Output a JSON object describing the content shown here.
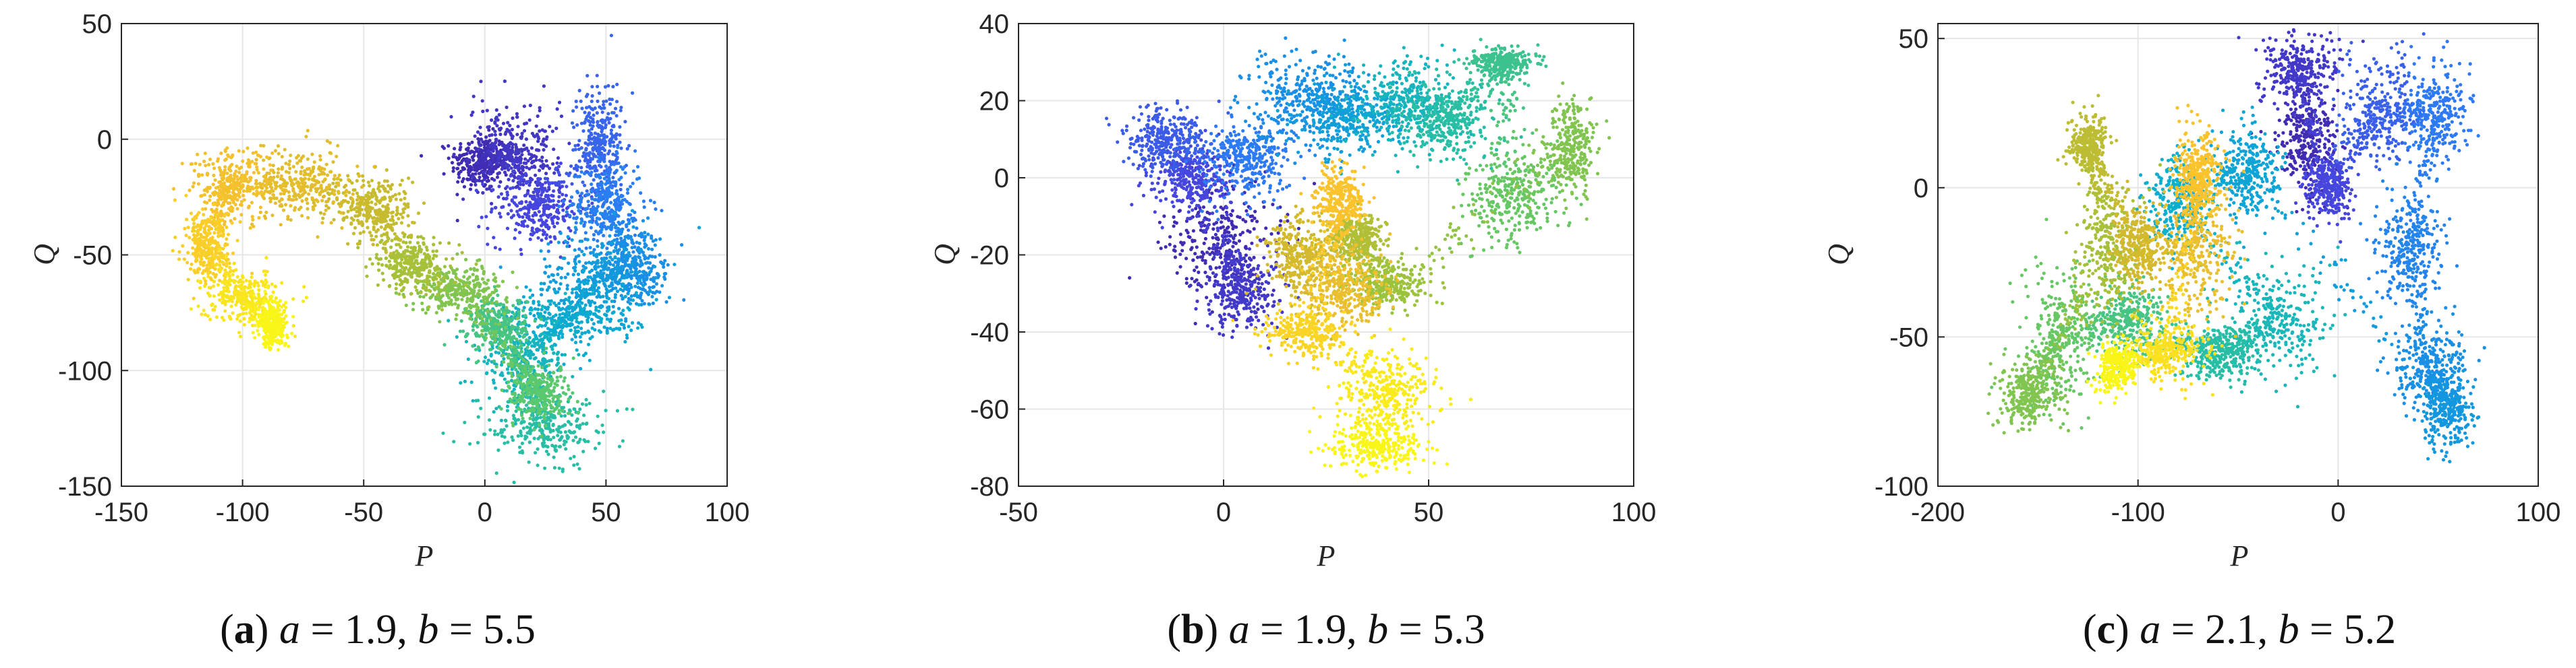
{
  "chart_data": [
    {
      "type": "scatter",
      "panel_label": "a",
      "caption_eq_a": "a",
      "caption_val_a": "= 1.9,",
      "caption_eq_b": "b",
      "caption_val_b": "= 5.5",
      "xlabel": "P",
      "ylabel": "Q",
      "xlim": [
        -150,
        100
      ],
      "ylim": [
        -150,
        50
      ],
      "xticks": [
        -150,
        -100,
        -50,
        0,
        50,
        100
      ],
      "yticks": [
        -150,
        -100,
        -50,
        0,
        50
      ],
      "xtick_labels": [
        "-150",
        "-100",
        "-50",
        "0",
        "50",
        "100"
      ],
      "ytick_labels": [
        "-150",
        "-100",
        "-50",
        "0",
        "50"
      ],
      "grid": true,
      "colormap": "parula",
      "clusters": [
        {
          "x": -2,
          "y": -10,
          "sx": 6,
          "sy": 6,
          "c": 0.02
        },
        {
          "x": 12,
          "y": -5,
          "sx": 9,
          "sy": 10,
          "c": 0.05
        },
        {
          "x": 22,
          "y": -30,
          "sx": 10,
          "sy": 8,
          "c": 0.1
        },
        {
          "x": 48,
          "y": 0,
          "sx": 5,
          "sy": 14,
          "c": 0.16
        },
        {
          "x": 50,
          "y": -30,
          "sx": 8,
          "sy": 10,
          "c": 0.22
        },
        {
          "x": 62,
          "y": -55,
          "sx": 7,
          "sy": 8,
          "c": 0.28
        },
        {
          "x": 45,
          "y": -60,
          "sx": 12,
          "sy": 10,
          "c": 0.33
        },
        {
          "x": 35,
          "y": -78,
          "sx": 14,
          "sy": 7,
          "c": 0.38
        },
        {
          "x": 15,
          "y": -95,
          "sx": 10,
          "sy": 10,
          "c": 0.44
        },
        {
          "x": 25,
          "y": -125,
          "sx": 12,
          "sy": 7,
          "c": 0.5
        },
        {
          "x": 5,
          "y": -80,
          "sx": 6,
          "sy": 6,
          "c": 0.56
        },
        {
          "x": 22,
          "y": -110,
          "sx": 6,
          "sy": 6,
          "c": 0.6
        },
        {
          "x": -10,
          "y": -65,
          "sx": 10,
          "sy": 5,
          "c": 0.66
        },
        {
          "x": -30,
          "y": -55,
          "sx": 8,
          "sy": 6,
          "c": 0.72
        },
        {
          "x": -45,
          "y": -30,
          "sx": 8,
          "sy": 8,
          "c": 0.78
        },
        {
          "x": -75,
          "y": -20,
          "sx": 10,
          "sy": 8,
          "c": 0.84
        },
        {
          "x": -105,
          "y": -20,
          "sx": 8,
          "sy": 8,
          "c": 0.88
        },
        {
          "x": -115,
          "y": -45,
          "sx": 5,
          "sy": 8,
          "c": 0.92
        },
        {
          "x": -100,
          "y": -68,
          "sx": 8,
          "sy": 6,
          "c": 0.96
        },
        {
          "x": -88,
          "y": -80,
          "sx": 3,
          "sy": 5,
          "c": 0.99
        }
      ]
    },
    {
      "type": "scatter",
      "panel_label": "b",
      "caption_eq_a": "a",
      "caption_val_a": "= 1.9,",
      "caption_eq_b": "b",
      "caption_val_b": "= 5.3",
      "xlabel": "P",
      "ylabel": "Q",
      "xlim": [
        -50,
        100
      ],
      "ylim": [
        -80,
        40
      ],
      "xticks": [
        -50,
        0,
        50,
        100
      ],
      "yticks": [
        -80,
        -60,
        -40,
        -20,
        0,
        20,
        40
      ],
      "xtick_labels": [
        "-50",
        "0",
        "50",
        "100"
      ],
      "ytick_labels": [
        "-80",
        "-60",
        "-40",
        "-20",
        "0",
        "20",
        "40"
      ],
      "grid": true,
      "colormap": "parula",
      "clusters": [
        {
          "x": 0,
          "y": -15,
          "sx": 7,
          "sy": 7,
          "c": 0.02
        },
        {
          "x": 5,
          "y": -30,
          "sx": 5,
          "sy": 5,
          "c": 0.06
        },
        {
          "x": -8,
          "y": 0,
          "sx": 5,
          "sy": 4,
          "c": 0.1
        },
        {
          "x": -15,
          "y": 10,
          "sx": 5,
          "sy": 4,
          "c": 0.14
        },
        {
          "x": 5,
          "y": 5,
          "sx": 5,
          "sy": 5,
          "c": 0.2
        },
        {
          "x": 20,
          "y": 22,
          "sx": 8,
          "sy": 6,
          "c": 0.28
        },
        {
          "x": 30,
          "y": 15,
          "sx": 6,
          "sy": 5,
          "c": 0.34
        },
        {
          "x": 45,
          "y": 20,
          "sx": 6,
          "sy": 6,
          "c": 0.44
        },
        {
          "x": 55,
          "y": 15,
          "sx": 6,
          "sy": 5,
          "c": 0.5
        },
        {
          "x": 68,
          "y": 30,
          "sx": 4,
          "sy": 2,
          "c": 0.54
        },
        {
          "x": 70,
          "y": -5,
          "sx": 6,
          "sy": 6,
          "c": 0.62
        },
        {
          "x": 85,
          "y": 8,
          "sx": 3,
          "sy": 6,
          "c": 0.66
        },
        {
          "x": 40,
          "y": -28,
          "sx": 5,
          "sy": 3,
          "c": 0.7
        },
        {
          "x": 33,
          "y": -15,
          "sx": 3,
          "sy": 3,
          "c": 0.74
        },
        {
          "x": 18,
          "y": -20,
          "sx": 4,
          "sy": 6,
          "c": 0.8
        },
        {
          "x": 30,
          "y": -30,
          "sx": 5,
          "sy": 5,
          "c": 0.86
        },
        {
          "x": 28,
          "y": -5,
          "sx": 3,
          "sy": 4,
          "c": 0.9
        },
        {
          "x": 20,
          "y": -40,
          "sx": 5,
          "sy": 3,
          "c": 0.93
        },
        {
          "x": 40,
          "y": -55,
          "sx": 6,
          "sy": 6,
          "c": 0.97
        },
        {
          "x": 38,
          "y": -70,
          "sx": 6,
          "sy": 3,
          "c": 0.99
        }
      ]
    },
    {
      "type": "scatter",
      "panel_label": "c",
      "caption_eq_a": "a",
      "caption_val_a": "= 2.1,",
      "caption_eq_b": "b",
      "caption_val_b": "= 5.2",
      "xlabel": "P",
      "ylabel": "Q",
      "xlim": [
        -200,
        100
      ],
      "ylim": [
        -100,
        55
      ],
      "xticks": [
        -200,
        -100,
        0,
        100
      ],
      "yticks": [
        -100,
        -50,
        0,
        50
      ],
      "xtick_labels": [
        "-200",
        "-100",
        "0",
        "100"
      ],
      "ytick_labels": [
        "-100",
        "-50",
        "0",
        "50"
      ],
      "grid": true,
      "colormap": "parula",
      "clusters": [
        {
          "x": -15,
          "y": 15,
          "sx": 8,
          "sy": 8,
          "c": 0.02
        },
        {
          "x": -20,
          "y": 40,
          "sx": 10,
          "sy": 6,
          "c": 0.06
        },
        {
          "x": -5,
          "y": 0,
          "sx": 6,
          "sy": 5,
          "c": 0.1
        },
        {
          "x": 20,
          "y": 25,
          "sx": 10,
          "sy": 10,
          "c": 0.15
        },
        {
          "x": 50,
          "y": 25,
          "sx": 8,
          "sy": 8,
          "c": 0.2
        },
        {
          "x": 35,
          "y": -20,
          "sx": 8,
          "sy": 10,
          "c": 0.24
        },
        {
          "x": 45,
          "y": -60,
          "sx": 10,
          "sy": 8,
          "c": 0.28
        },
        {
          "x": 55,
          "y": -75,
          "sx": 6,
          "sy": 6,
          "c": 0.31
        },
        {
          "x": -45,
          "y": 5,
          "sx": 8,
          "sy": 8,
          "c": 0.36
        },
        {
          "x": -80,
          "y": -5,
          "sx": 8,
          "sy": 8,
          "c": 0.4
        },
        {
          "x": -30,
          "y": -45,
          "sx": 12,
          "sy": 10,
          "c": 0.45
        },
        {
          "x": -60,
          "y": -55,
          "sx": 10,
          "sy": 5,
          "c": 0.5
        },
        {
          "x": -105,
          "y": -45,
          "sx": 8,
          "sy": 6,
          "c": 0.56
        },
        {
          "x": -140,
          "y": -50,
          "sx": 10,
          "sy": 12,
          "c": 0.62
        },
        {
          "x": -155,
          "y": -70,
          "sx": 8,
          "sy": 6,
          "c": 0.66
        },
        {
          "x": -115,
          "y": -20,
          "sx": 8,
          "sy": 12,
          "c": 0.72
        },
        {
          "x": -125,
          "y": 15,
          "sx": 5,
          "sy": 5,
          "c": 0.76
        },
        {
          "x": -100,
          "y": -20,
          "sx": 6,
          "sy": 6,
          "c": 0.8
        },
        {
          "x": -70,
          "y": -20,
          "sx": 10,
          "sy": 12,
          "c": 0.86
        },
        {
          "x": -70,
          "y": 5,
          "sx": 6,
          "sy": 8,
          "c": 0.9
        },
        {
          "x": -85,
          "y": -55,
          "sx": 10,
          "sy": 5,
          "c": 0.95
        },
        {
          "x": -110,
          "y": -60,
          "sx": 5,
          "sy": 4,
          "c": 0.99
        }
      ]
    }
  ]
}
